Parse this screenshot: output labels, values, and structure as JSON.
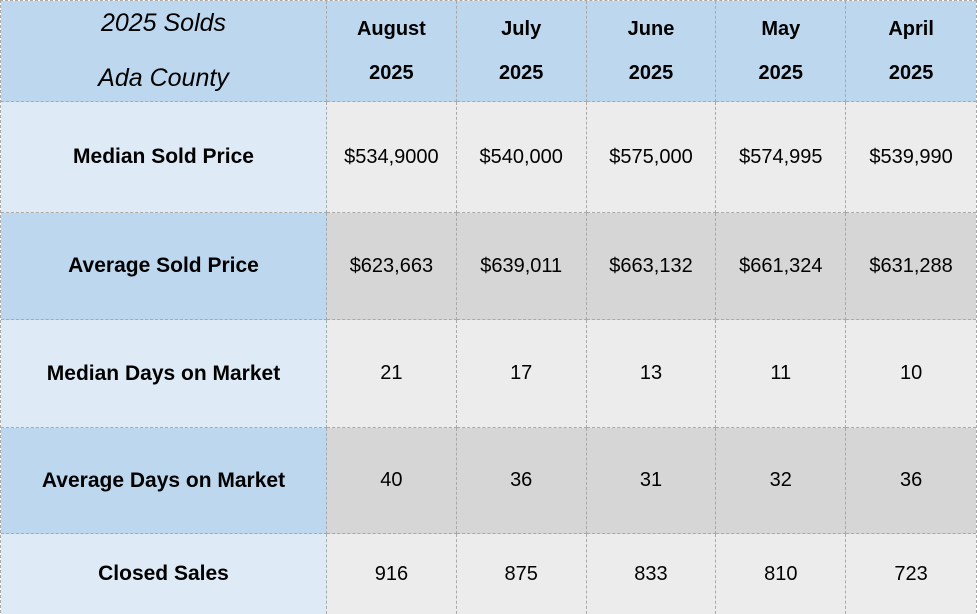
{
  "table": {
    "title_line1": "2025 Solds",
    "title_line2": "Ada County",
    "columns": [
      {
        "month": "August",
        "year": "2025"
      },
      {
        "month": "July",
        "year": "2025"
      },
      {
        "month": "June",
        "year": "2025"
      },
      {
        "month": "May",
        "year": "2025"
      },
      {
        "month": "April",
        "year": "2025"
      }
    ],
    "rows": [
      {
        "label": "Median Sold Price",
        "values": [
          "$534,9000",
          "$540,000",
          "$575,000",
          "$574,995",
          "$539,990"
        ]
      },
      {
        "label": "Average Sold Price",
        "values": [
          "$623,663",
          "$639,011",
          "$663,132",
          "$661,324",
          "$631,288"
        ]
      },
      {
        "label": "Median Days on Market",
        "values": [
          "21",
          "17",
          "13",
          "11",
          "10"
        ]
      },
      {
        "label": "Average Days on Market",
        "values": [
          "40",
          "36",
          "31",
          "32",
          "36"
        ]
      },
      {
        "label": "Closed Sales",
        "values": [
          "916",
          "875",
          "833",
          "810",
          "723"
        ]
      }
    ]
  },
  "colors": {
    "blue_header": "#bdd7ee",
    "blue_light": "#deeaf6",
    "gray_light": "#ececec",
    "gray_dark": "#d6d6d6",
    "border": "#a9a9a9",
    "text": "#000000"
  },
  "chart_data": {
    "type": "table",
    "title": "2025 Solds Ada County",
    "columns": [
      "August 2025",
      "July 2025",
      "June 2025",
      "May 2025",
      "April 2025"
    ],
    "rows": [
      {
        "metric": "Median Sold Price",
        "values": [
          "$534,9000",
          "$540,000",
          "$575,000",
          "$574,995",
          "$539,990"
        ]
      },
      {
        "metric": "Average Sold Price",
        "values": [
          "$623,663",
          "$639,011",
          "$663,132",
          "$661,324",
          "$631,288"
        ]
      },
      {
        "metric": "Median Days on Market",
        "values": [
          21,
          17,
          13,
          11,
          10
        ]
      },
      {
        "metric": "Average Days on Market",
        "values": [
          40,
          36,
          31,
          32,
          36
        ]
      },
      {
        "metric": "Closed Sales",
        "values": [
          916,
          875,
          833,
          810,
          723
        ]
      }
    ]
  }
}
